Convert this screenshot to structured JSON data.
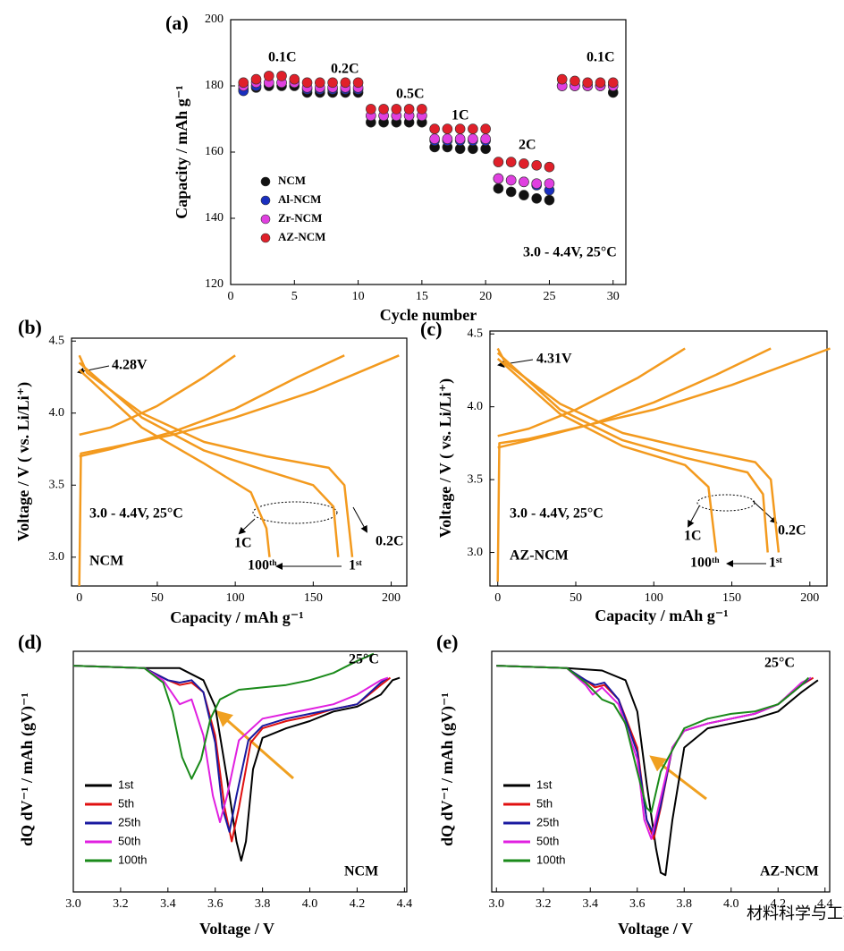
{
  "chart_data": [
    {
      "type": "scatter",
      "title": "(a)",
      "xlabel": "Cycle number",
      "ylabel": "Capacity / mAh g⁻¹",
      "x": [
        1,
        2,
        3,
        4,
        5,
        6,
        7,
        8,
        9,
        10,
        11,
        12,
        13,
        14,
        15,
        16,
        17,
        18,
        19,
        20,
        21,
        22,
        23,
        24,
        25,
        26,
        27,
        28,
        29,
        30
      ],
      "series": [
        {
          "name": "NCM",
          "color": "#111111",
          "values": [
            179,
            179.5,
            180,
            180,
            180,
            178,
            178,
            178,
            178,
            178,
            169,
            169,
            169,
            169,
            169,
            161.5,
            161.5,
            161,
            161,
            161,
            149,
            148,
            147,
            146,
            145.5,
            180,
            180,
            180,
            180,
            178
          ]
        },
        {
          "name": "Al-NCM",
          "color": "#1a2fbf",
          "values": [
            178.5,
            180,
            181,
            181,
            181,
            179,
            179,
            179,
            179,
            179,
            171,
            171,
            171,
            171,
            171,
            163.5,
            163.5,
            163.5,
            163.5,
            163.5,
            152,
            151.5,
            151,
            150,
            148.5,
            180,
            180,
            180,
            180,
            180
          ]
        },
        {
          "name": "Zr-NCM",
          "color": "#e040e0",
          "values": [
            180,
            181,
            181,
            181,
            181,
            179.5,
            179.5,
            179.5,
            179.5,
            179.5,
            171,
            171,
            171,
            171,
            171,
            164,
            164,
            164,
            164,
            164,
            152,
            151.5,
            151,
            150.5,
            150.5,
            180,
            180,
            180,
            180,
            180
          ]
        },
        {
          "name": "AZ-NCM",
          "color": "#e0202a",
          "values": [
            181,
            182,
            183,
            183,
            182,
            181,
            181,
            181,
            181,
            181,
            173,
            173,
            173,
            173,
            173,
            167,
            167,
            167,
            167,
            167,
            157,
            157,
            156.5,
            156,
            155.5,
            182,
            181.5,
            181,
            181,
            181
          ]
        }
      ],
      "xlim": [
        0,
        31
      ],
      "ylim": [
        120,
        200
      ],
      "xticks": [
        0,
        5,
        10,
        15,
        20,
        25,
        30
      ],
      "yticks": [
        120,
        140,
        160,
        180,
        200
      ],
      "legend": "left",
      "annotations": [
        "0.1C",
        "0.2C",
        "0.5C",
        "1C",
        "2C",
        "0.1C",
        "3.0 - 4.4V, 25°C"
      ]
    },
    {
      "type": "line",
      "title": "(b)",
      "xlabel": "Capacity / mAh g⁻¹",
      "ylabel": "Voltage / V ( vs. Li/Li⁺)",
      "series": [
        {
          "color": "#f39a1e",
          "x": [
            0,
            1,
            20,
            60,
            100,
            150,
            205
          ],
          "values": [
            2.8,
            3.72,
            3.76,
            3.85,
            3.97,
            4.15,
            4.4
          ]
        },
        {
          "color": "#f39a1e",
          "x": [
            0,
            5,
            40,
            80,
            120,
            160,
            170,
            175
          ],
          "values": [
            4.4,
            4.28,
            4.0,
            3.8,
            3.7,
            3.62,
            3.5,
            3.0
          ]
        },
        {
          "color": "#f39a1e",
          "x": [
            0,
            20,
            60,
            100,
            140,
            170
          ],
          "values": [
            3.7,
            3.75,
            3.87,
            4.03,
            4.25,
            4.4
          ]
        },
        {
          "color": "#f39a1e",
          "x": [
            0,
            40,
            80,
            120,
            150,
            163,
            166
          ],
          "values": [
            4.35,
            3.97,
            3.74,
            3.6,
            3.5,
            3.35,
            3.0
          ]
        },
        {
          "color": "#f39a1e",
          "x": [
            0,
            20,
            50,
            80,
            100
          ],
          "values": [
            3.85,
            3.9,
            4.05,
            4.25,
            4.4
          ]
        },
        {
          "color": "#f39a1e",
          "x": [
            0,
            40,
            80,
            110,
            120,
            122
          ],
          "values": [
            4.3,
            3.9,
            3.65,
            3.45,
            3.2,
            3.0
          ]
        }
      ],
      "xlim": [
        -5,
        210
      ],
      "ylim": [
        2.8,
        4.52
      ],
      "xticks": [
        0,
        50,
        100,
        150,
        200
      ],
      "yticks": [
        {
          "value": 3,
          "label": "3.0"
        },
        3.5,
        {
          "value": 4,
          "label": "4.0"
        },
        4.5
      ],
      "annotations": [
        "4.28V",
        "3.0 - 4.4V, 25°C",
        "1C",
        "0.2C",
        "NCM",
        "100ᵗʰ",
        "1ˢᵗ"
      ]
    },
    {
      "type": "line",
      "title": "(c)",
      "xlabel": "Capacity / mAh g⁻¹",
      "ylabel": "Voltage / V ( vs. Li/Li⁺)",
      "series": [
        {
          "color": "#f39a1e",
          "x": [
            0,
            1,
            20,
            60,
            100,
            150,
            213
          ],
          "values": [
            2.8,
            3.75,
            3.78,
            3.88,
            3.98,
            4.15,
            4.4
          ]
        },
        {
          "color": "#f39a1e",
          "x": [
            0,
            5,
            40,
            80,
            120,
            165,
            175,
            180
          ],
          "values": [
            4.4,
            4.3,
            4.02,
            3.82,
            3.72,
            3.62,
            3.5,
            3.0
          ]
        },
        {
          "color": "#f39a1e",
          "x": [
            0,
            20,
            60,
            100,
            140,
            175
          ],
          "values": [
            3.72,
            3.77,
            3.88,
            4.03,
            4.22,
            4.4
          ]
        },
        {
          "color": "#f39a1e",
          "x": [
            0,
            40,
            80,
            120,
            160,
            170,
            173
          ],
          "values": [
            4.37,
            3.98,
            3.77,
            3.65,
            3.55,
            3.4,
            3.0
          ]
        },
        {
          "color": "#f39a1e",
          "x": [
            0,
            20,
            50,
            90,
            120
          ],
          "values": [
            3.8,
            3.85,
            3.98,
            4.2,
            4.4
          ]
        },
        {
          "color": "#f39a1e",
          "x": [
            0,
            40,
            80,
            120,
            135,
            140
          ],
          "values": [
            4.33,
            3.95,
            3.73,
            3.6,
            3.45,
            3.0
          ]
        }
      ],
      "xlim": [
        -5,
        211
      ],
      "ylim": [
        2.77,
        4.52
      ],
      "xticks": [
        0,
        50,
        100,
        150,
        200
      ],
      "yticks": [
        {
          "value": 3,
          "label": "3.0"
        },
        3.5,
        {
          "value": 4,
          "label": "4.0"
        },
        4.5
      ],
      "annotations": [
        "4.31V",
        "3.0 - 4.4V, 25°C",
        "1C",
        "0.2C",
        "AZ-NCM",
        "100ᵗʰ",
        "1ˢᵗ"
      ]
    },
    {
      "type": "line",
      "title": "(d)",
      "xlabel": "Voltage / V",
      "ylabel": "dQ dV⁻¹ / mAh (gV)⁻¹",
      "series": [
        {
          "name": "1st",
          "color": "#000000",
          "x": [
            3.0,
            3.3,
            3.45,
            3.55,
            3.6,
            3.65,
            3.69,
            3.71,
            3.73,
            3.76,
            3.8,
            3.9,
            4.0,
            4.1,
            4.2,
            4.3,
            4.35,
            4.38
          ],
          "values": [
            94,
            93,
            93,
            88,
            77,
            47,
            21,
            13,
            21,
            51,
            64,
            68,
            71,
            75,
            77,
            82,
            88,
            89
          ]
        },
        {
          "name": "5th",
          "color": "#e01010",
          "x": [
            3.0,
            3.3,
            3.4,
            3.45,
            3.5,
            3.55,
            3.6,
            3.64,
            3.67,
            3.7,
            3.75,
            3.8,
            3.9,
            4.0,
            4.1,
            4.2,
            4.3,
            4.34
          ],
          "values": [
            94,
            93,
            88,
            86,
            87,
            83,
            65,
            35,
            21,
            35,
            62,
            68,
            71,
            73,
            76,
            78,
            86,
            89
          ]
        },
        {
          "name": "25th",
          "color": "#1a1aa0",
          "x": [
            3.0,
            3.3,
            3.4,
            3.45,
            3.5,
            3.55,
            3.6,
            3.63,
            3.66,
            3.69,
            3.74,
            3.8,
            3.9,
            4.0,
            4.1,
            4.2,
            4.3,
            4.33
          ],
          "values": [
            94,
            93,
            88,
            87,
            88,
            83,
            62,
            35,
            25,
            40,
            63,
            69,
            72,
            74,
            76,
            78,
            87,
            89
          ]
        },
        {
          "name": "50th",
          "color": "#e020e0",
          "x": [
            3.0,
            3.3,
            3.38,
            3.45,
            3.5,
            3.55,
            3.59,
            3.62,
            3.65,
            3.7,
            3.8,
            3.9,
            4.0,
            4.1,
            4.2,
            4.3,
            4.33
          ],
          "values": [
            94,
            93,
            88,
            78,
            80,
            65,
            40,
            29,
            40,
            63,
            72,
            74,
            76,
            78,
            82,
            88,
            89
          ]
        },
        {
          "name": "100th",
          "color": "#1a8a1a",
          "x": [
            3.0,
            3.3,
            3.38,
            3.42,
            3.46,
            3.5,
            3.54,
            3.58,
            3.62,
            3.7,
            3.8,
            3.9,
            4.0,
            4.1,
            4.2,
            4.27
          ],
          "values": [
            94,
            93,
            87,
            75,
            56,
            47,
            55,
            72,
            80,
            84,
            85,
            86,
            88,
            91,
            96,
            99
          ]
        }
      ],
      "xlim": [
        3.0,
        4.41
      ],
      "ylim": [
        0,
        100
      ],
      "xticks": [
        {
          "value": 3,
          "label": "3.0"
        },
        3.2,
        3.4,
        3.6,
        3.8,
        {
          "value": 4,
          "label": "4.0"
        },
        4.2,
        4.4
      ],
      "legend": "lower left",
      "annotations": [
        "25°C",
        "NCM"
      ]
    },
    {
      "type": "line",
      "title": "(e)",
      "xlabel": "Voltage / V",
      "ylabel": "dQ dV⁻¹ / mAh (gV)⁻¹",
      "series": [
        {
          "name": "1st",
          "color": "#000000",
          "x": [
            3.0,
            3.3,
            3.45,
            3.55,
            3.6,
            3.64,
            3.68,
            3.7,
            3.72,
            3.75,
            3.8,
            3.9,
            4.0,
            4.1,
            4.2,
            4.3,
            4.37
          ],
          "values": [
            94,
            93,
            92,
            88,
            75,
            45,
            18,
            8,
            7,
            30,
            60,
            68,
            70,
            72,
            75,
            83,
            88
          ]
        },
        {
          "name": "5th",
          "color": "#e01010",
          "x": [
            3.0,
            3.3,
            3.38,
            3.42,
            3.46,
            3.52,
            3.6,
            3.64,
            3.67,
            3.7,
            3.75,
            3.8,
            3.9,
            4.0,
            4.1,
            4.2,
            4.3,
            4.35
          ],
          "values": [
            94,
            93,
            88,
            85,
            86,
            80,
            60,
            30,
            22,
            35,
            60,
            67,
            70,
            72,
            74,
            78,
            86,
            89
          ]
        },
        {
          "name": "25th",
          "color": "#1a1aa0",
          "x": [
            3.0,
            3.3,
            3.38,
            3.42,
            3.46,
            3.52,
            3.6,
            3.64,
            3.67,
            3.7,
            3.75,
            3.8,
            3.9,
            4.0,
            4.1,
            4.2,
            4.3,
            4.34
          ],
          "values": [
            94,
            93,
            88,
            86,
            87,
            80,
            58,
            30,
            24,
            36,
            60,
            67,
            70,
            72,
            74,
            78,
            86,
            89
          ]
        },
        {
          "name": "50th",
          "color": "#e020e0",
          "x": [
            3.0,
            3.3,
            3.38,
            3.41,
            3.45,
            3.52,
            3.6,
            3.63,
            3.66,
            3.69,
            3.75,
            3.8,
            3.9,
            4.0,
            4.1,
            4.2,
            4.3,
            4.34
          ],
          "values": [
            94,
            93,
            86,
            82,
            85,
            78,
            55,
            30,
            22,
            35,
            60,
            67,
            70,
            72,
            74,
            78,
            87,
            89
          ]
        },
        {
          "name": "100th",
          "color": "#1a8a1a",
          "x": [
            3.0,
            3.3,
            3.38,
            3.45,
            3.5,
            3.55,
            3.6,
            3.64,
            3.66,
            3.7,
            3.8,
            3.9,
            4.0,
            4.1,
            4.2,
            4.3,
            4.33
          ],
          "values": [
            94,
            93,
            87,
            80,
            78,
            70,
            50,
            35,
            33,
            50,
            68,
            72,
            74,
            75,
            78,
            86,
            89
          ]
        }
      ],
      "xlim": [
        2.98,
        4.42
      ],
      "ylim": [
        0,
        100
      ],
      "xticks": [
        {
          "value": 3,
          "label": "3.0"
        },
        3.2,
        3.4,
        3.6,
        3.8,
        {
          "value": 4,
          "label": "4.0"
        },
        4.2,
        4.4
      ],
      "legend": "lower left",
      "annotations": [
        "25°C",
        "AZ-NCM"
      ]
    }
  ],
  "watermark": "材料科学与工程"
}
